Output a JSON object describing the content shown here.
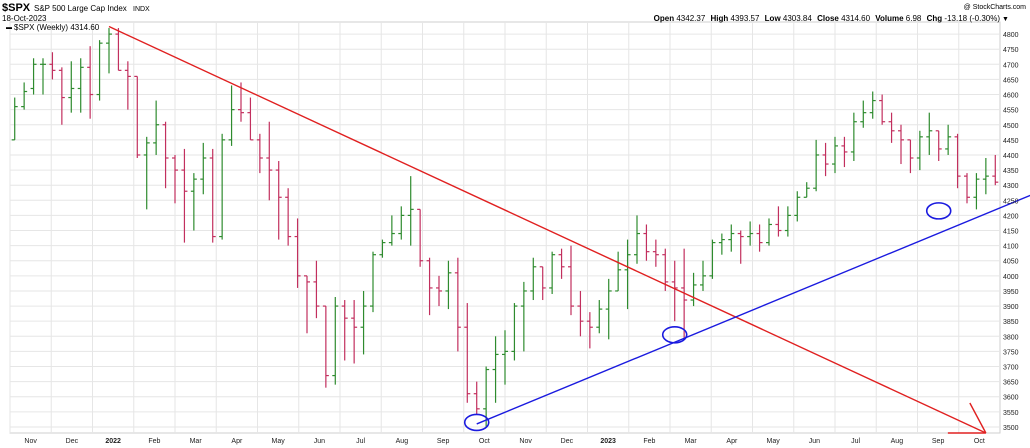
{
  "header": {
    "symbol": "$SPX",
    "name": "S&P 500 Large Cap Index",
    "exchange": "INDX",
    "date": "18-Oct-2023",
    "copyright": "@ StockCharts.com",
    "open_label": "Open",
    "open": "4342.37",
    "high_label": "High",
    "high": "4393.57",
    "low_label": "Low",
    "low": "4303.84",
    "close_label": "Close",
    "close": "4314.60",
    "volume_label": "Volume",
    "volume": "6.98",
    "chg_label": "Chg",
    "chg": "-13.18 (-0.30%)",
    "chg_marker": "▼"
  },
  "chart_data": {
    "type": "ohlc",
    "legend": "$SPX (Weekly) 4314.60",
    "legend_marker": "▬",
    "ylim": [
      3480,
      4840
    ],
    "y_ticks": [
      3500,
      3550,
      3600,
      3650,
      3700,
      3750,
      3800,
      3850,
      3900,
      3950,
      4000,
      4050,
      4100,
      4150,
      4200,
      4250,
      4300,
      4350,
      4400,
      4450,
      4500,
      4550,
      4600,
      4650,
      4700,
      4750,
      4800
    ],
    "x_axis_months": [
      "Nov",
      "Dec",
      "2022",
      "Feb",
      "Mar",
      "Apr",
      "May",
      "Jun",
      "Jul",
      "Aug",
      "Sep",
      "Oct",
      "Nov",
      "Dec",
      "2023",
      "Feb",
      "Mar",
      "Apr",
      "May",
      "Jun",
      "Jul",
      "Aug",
      "Sep",
      "Oct"
    ],
    "colors": {
      "up": "#2e8b2e",
      "down": "#c22f5e",
      "resistance": "#e02020",
      "support": "#1a1adf",
      "grid": "#e6e6e6"
    },
    "bars": [
      [
        4450,
        4590,
        4450,
        4560
      ],
      [
        4560,
        4640,
        4550,
        4610
      ],
      [
        4620,
        4720,
        4600,
        4700
      ],
      [
        4700,
        4720,
        4600,
        4700
      ],
      [
        4700,
        4740,
        4650,
        4680
      ],
      [
        4680,
        4690,
        4500,
        4590
      ],
      [
        4590,
        4710,
        4540,
        4620
      ],
      [
        4620,
        4720,
        4540,
        4690
      ],
      [
        4690,
        4760,
        4520,
        4600
      ],
      [
        4600,
        4780,
        4580,
        4770
      ],
      [
        4770,
        4820,
        4670,
        4800
      ],
      [
        4800,
        4820,
        4680,
        4680
      ],
      [
        4680,
        4710,
        4550,
        4660
      ],
      [
        4660,
        4600,
        4390,
        4400
      ],
      [
        4400,
        4460,
        4220,
        4440
      ],
      [
        4440,
        4580,
        4400,
        4500
      ],
      [
        4500,
        4510,
        4290,
        4390
      ],
      [
        4390,
        4400,
        4240,
        4350
      ],
      [
        4350,
        4420,
        4110,
        4280
      ],
      [
        4280,
        4340,
        4150,
        4320
      ],
      [
        4320,
        4440,
        4270,
        4390
      ],
      [
        4390,
        4420,
        4110,
        4130
      ],
      [
        4130,
        4470,
        4120,
        4450
      ],
      [
        4450,
        4630,
        4430,
        4550
      ],
      [
        4550,
        4640,
        4510,
        4540
      ],
      [
        4540,
        4590,
        4460,
        4450
      ],
      [
        4450,
        4470,
        4340,
        4390
      ],
      [
        4390,
        4510,
        4250,
        4350
      ],
      [
        4350,
        4380,
        4120,
        4260
      ],
      [
        4260,
        4290,
        4100,
        4130
      ],
      [
        4130,
        4190,
        3960,
        4000
      ],
      [
        4000,
        4000,
        3810,
        3980
      ],
      [
        3980,
        4050,
        3860,
        3900
      ],
      [
        3900,
        3880,
        3630,
        3670
      ],
      [
        3670,
        3930,
        3640,
        3900
      ],
      [
        3900,
        3920,
        3720,
        3860
      ],
      [
        3860,
        3920,
        3710,
        3830
      ],
      [
        3830,
        3950,
        3740,
        3900
      ],
      [
        3900,
        4080,
        3880,
        4070
      ],
      [
        4070,
        4120,
        4060,
        4110
      ],
      [
        4110,
        4200,
        4100,
        4140
      ],
      [
        4140,
        4230,
        4120,
        4200
      ],
      [
        4200,
        4330,
        4100,
        4220
      ],
      [
        4220,
        4180,
        4030,
        4050
      ],
      [
        4050,
        4060,
        3870,
        3960
      ],
      [
        3960,
        4000,
        3900,
        3950
      ],
      [
        3950,
        4050,
        3890,
        4010
      ],
      [
        4010,
        4060,
        3750,
        3830
      ],
      [
        3830,
        3910,
        3580,
        3610
      ],
      [
        3610,
        3650,
        3540,
        3560
      ],
      [
        3560,
        3700,
        3500,
        3690
      ],
      [
        3690,
        3800,
        3580,
        3740
      ],
      [
        3740,
        3820,
        3640,
        3750
      ],
      [
        3750,
        3910,
        3720,
        3900
      ],
      [
        3900,
        3980,
        3750,
        3950
      ],
      [
        3950,
        4060,
        3920,
        4030
      ],
      [
        4030,
        4010,
        3920,
        3960
      ],
      [
        3960,
        4080,
        3940,
        4070
      ],
      [
        4070,
        4090,
        3990,
        4030
      ],
      [
        4030,
        4100,
        3870,
        3900
      ],
      [
        3900,
        3950,
        3800,
        3850
      ],
      [
        3850,
        3880,
        3760,
        3830
      ],
      [
        3830,
        3920,
        3810,
        3890
      ],
      [
        3890,
        3990,
        3790,
        3950
      ],
      [
        3950,
        4080,
        3950,
        4020
      ],
      [
        4020,
        4120,
        3890,
        4070
      ],
      [
        4070,
        4200,
        4040,
        4140
      ],
      [
        4140,
        4170,
        4050,
        4080
      ],
      [
        4080,
        4120,
        4030,
        4070
      ],
      [
        4070,
        4090,
        3950,
        3980
      ],
      [
        3980,
        4050,
        3850,
        3960
      ],
      [
        3960,
        4090,
        3790,
        3920
      ],
      [
        3920,
        4010,
        3900,
        3970
      ],
      [
        3970,
        4050,
        3950,
        4000
      ],
      [
        4000,
        4120,
        3990,
        4110
      ],
      [
        4110,
        4140,
        4070,
        4120
      ],
      [
        4120,
        4170,
        4080,
        4140
      ],
      [
        4140,
        4150,
        4040,
        4130
      ],
      [
        4130,
        4180,
        4100,
        4140
      ],
      [
        4140,
        4170,
        4080,
        4110
      ],
      [
        4110,
        4190,
        4100,
        4170
      ],
      [
        4170,
        4230,
        4130,
        4150
      ],
      [
        4150,
        4230,
        4130,
        4200
      ],
      [
        4200,
        4280,
        4180,
        4260
      ],
      [
        4260,
        4310,
        4270,
        4290
      ],
      [
        4290,
        4450,
        4280,
        4400
      ],
      [
        4400,
        4440,
        4330,
        4370
      ],
      [
        4370,
        4460,
        4340,
        4430
      ],
      [
        4430,
        4460,
        4360,
        4410
      ],
      [
        4410,
        4540,
        4380,
        4510
      ],
      [
        4510,
        4580,
        4490,
        4540
      ],
      [
        4540,
        4610,
        4520,
        4580
      ],
      [
        4580,
        4600,
        4500,
        4510
      ],
      [
        4510,
        4540,
        4440,
        4480
      ],
      [
        4480,
        4500,
        4370,
        4450
      ],
      [
        4450,
        4420,
        4340,
        4390
      ],
      [
        4390,
        4480,
        4350,
        4460
      ],
      [
        4460,
        4540,
        4400,
        4480
      ],
      [
        4480,
        4480,
        4380,
        4420
      ],
      [
        4420,
        4500,
        4400,
        4460
      ],
      [
        4460,
        4470,
        4290,
        4330
      ],
      [
        4330,
        4340,
        4240,
        4260
      ],
      [
        4260,
        4340,
        4220,
        4320
      ],
      [
        4320,
        4390,
        4270,
        4330
      ],
      [
        4330,
        4400,
        4300,
        4310
      ]
    ],
    "resistance_line": {
      "from": [
        10,
        4825
      ],
      "to": [
        103,
        3480
      ]
    },
    "support_line": {
      "from": [
        49,
        3510
      ],
      "to": [
        108,
        4270
      ]
    },
    "circles": [
      {
        "x": 49,
        "y": 3515
      },
      {
        "x": 70,
        "y": 3805
      },
      {
        "x": 98,
        "y": 4215
      }
    ]
  }
}
